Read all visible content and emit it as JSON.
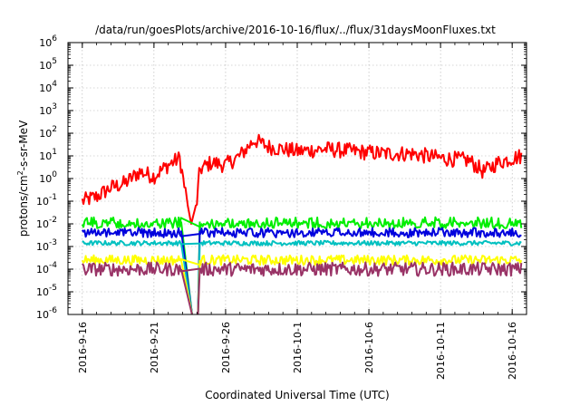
{
  "chart_data": {
    "type": "line",
    "title": "/data/run/goesPlots/archive/2016-10-16/flux/../flux/31daysMoonFluxes.txt",
    "xlabel": "Coordinated Universal Time (UTC)",
    "ylabel": "protons/cm²-s-sr-MeV",
    "ylabel_parts": {
      "pre": "protons/cm",
      "sup": "2",
      "post": "-s-sr-MeV"
    },
    "yscale": "log",
    "ylim": [
      1e-06,
      1000000.0
    ],
    "xlim": [
      "2016-09-15",
      "2016-10-17"
    ],
    "x_ticks": [
      "2016-9-16",
      "2016-9-21",
      "2016-9-26",
      "2016-10-1",
      "2016-10-6",
      "2016-10-11",
      "2016-10-16"
    ],
    "y_ticks": [
      {
        "base": "10",
        "exp": "-6"
      },
      {
        "base": "10",
        "exp": "-5"
      },
      {
        "base": "10",
        "exp": "-4"
      },
      {
        "base": "10",
        "exp": "-3"
      },
      {
        "base": "10",
        "exp": "-2"
      },
      {
        "base": "10",
        "exp": "-1"
      },
      {
        "base": "10",
        "exp": "0"
      },
      {
        "base": "10",
        "exp": "1"
      },
      {
        "base": "10",
        "exp": "2"
      },
      {
        "base": "10",
        "exp": "3"
      },
      {
        "base": "10",
        "exp": "4"
      },
      {
        "base": "10",
        "exp": "5"
      },
      {
        "base": "10",
        "exp": "6"
      }
    ],
    "grid": true,
    "gap": {
      "start": "2016-09-23",
      "end": "2016-09-24"
    },
    "series": [
      {
        "color": "#ff0000",
        "width": 2,
        "keypoints": [
          [
            "2016-09-16",
            -1.0
          ],
          [
            "2016-09-17",
            -0.8
          ],
          [
            "2016-09-18",
            -0.4
          ],
          [
            "2016-09-19",
            -0.2
          ],
          [
            "2016-09-20",
            0.3
          ],
          [
            "2016-09-21",
            0.1
          ],
          [
            "2016-09-22",
            0.6
          ],
          [
            "2016-09-22.8",
            0.9
          ],
          [
            "2016-09-23.3",
            -1.0
          ],
          [
            "2016-09-23.6",
            -2.0
          ],
          [
            "2016-09-24.0",
            -1.0
          ],
          [
            "2016-09-24.2",
            0.4
          ],
          [
            "2016-09-25",
            0.7
          ],
          [
            "2016-09-26",
            0.6
          ],
          [
            "2016-09-27",
            1.0
          ],
          [
            "2016-09-28",
            1.7
          ],
          [
            "2016-09-29",
            1.4
          ],
          [
            "2016-09-30",
            1.3
          ],
          [
            "2016-10-01",
            1.2
          ],
          [
            "2016-10-03",
            1.3
          ],
          [
            "2016-10-05",
            1.2
          ],
          [
            "2016-10-07",
            1.1
          ],
          [
            "2016-10-09",
            1.1
          ],
          [
            "2016-10-11",
            0.9
          ],
          [
            "2016-10-13",
            0.8
          ],
          [
            "2016-10-14",
            0.3
          ],
          [
            "2016-10-15",
            0.7
          ],
          [
            "2016-10-16",
            0.9
          ],
          [
            "2016-10-16.7",
            1.0
          ]
        ],
        "noise": 0.35
      },
      {
        "color": "#00ee00",
        "width": 2,
        "keypoints": [
          [
            "2016-09-16",
            -1.9
          ],
          [
            "2016-09-22.9",
            -1.9
          ],
          [
            "2016-09-24.2",
            -1.9
          ],
          [
            "2016-10-16.7",
            -1.9
          ]
        ],
        "noise": 0.4,
        "spiky": true,
        "baseline": -2.3
      },
      {
        "color": "#0000dd",
        "width": 2,
        "keypoints": [
          [
            "2016-09-16",
            -2.3
          ],
          [
            "2016-09-22.9",
            -2.3
          ],
          [
            "2016-09-24.2",
            -2.3
          ],
          [
            "2016-10-16.7",
            -2.3
          ]
        ],
        "noise": 0.25,
        "spiky": true,
        "baseline": -2.7
      },
      {
        "color": "#00c0c0",
        "width": 2,
        "keypoints": [
          [
            "2016-09-16",
            -2.85
          ],
          [
            "2016-09-22.9",
            -2.85
          ],
          [
            "2016-09-24.2",
            -2.85
          ],
          [
            "2016-10-16.7",
            -2.85
          ]
        ],
        "noise": 0.1
      },
      {
        "color": "#ffff00",
        "width": 2,
        "keypoints": [
          [
            "2016-09-16",
            -3.6
          ],
          [
            "2016-09-22.9",
            -3.6
          ],
          [
            "2016-09-24.2",
            -3.6
          ],
          [
            "2016-10-16.7",
            -3.6
          ]
        ],
        "noise": 0.22
      },
      {
        "color": "#993366",
        "width": 2,
        "keypoints": [
          [
            "2016-09-16",
            -4.0
          ],
          [
            "2016-09-22.9",
            -4.0
          ],
          [
            "2016-09-24.2",
            -4.0
          ],
          [
            "2016-10-16.7",
            -4.0
          ]
        ],
        "noise": 0.3
      }
    ]
  }
}
